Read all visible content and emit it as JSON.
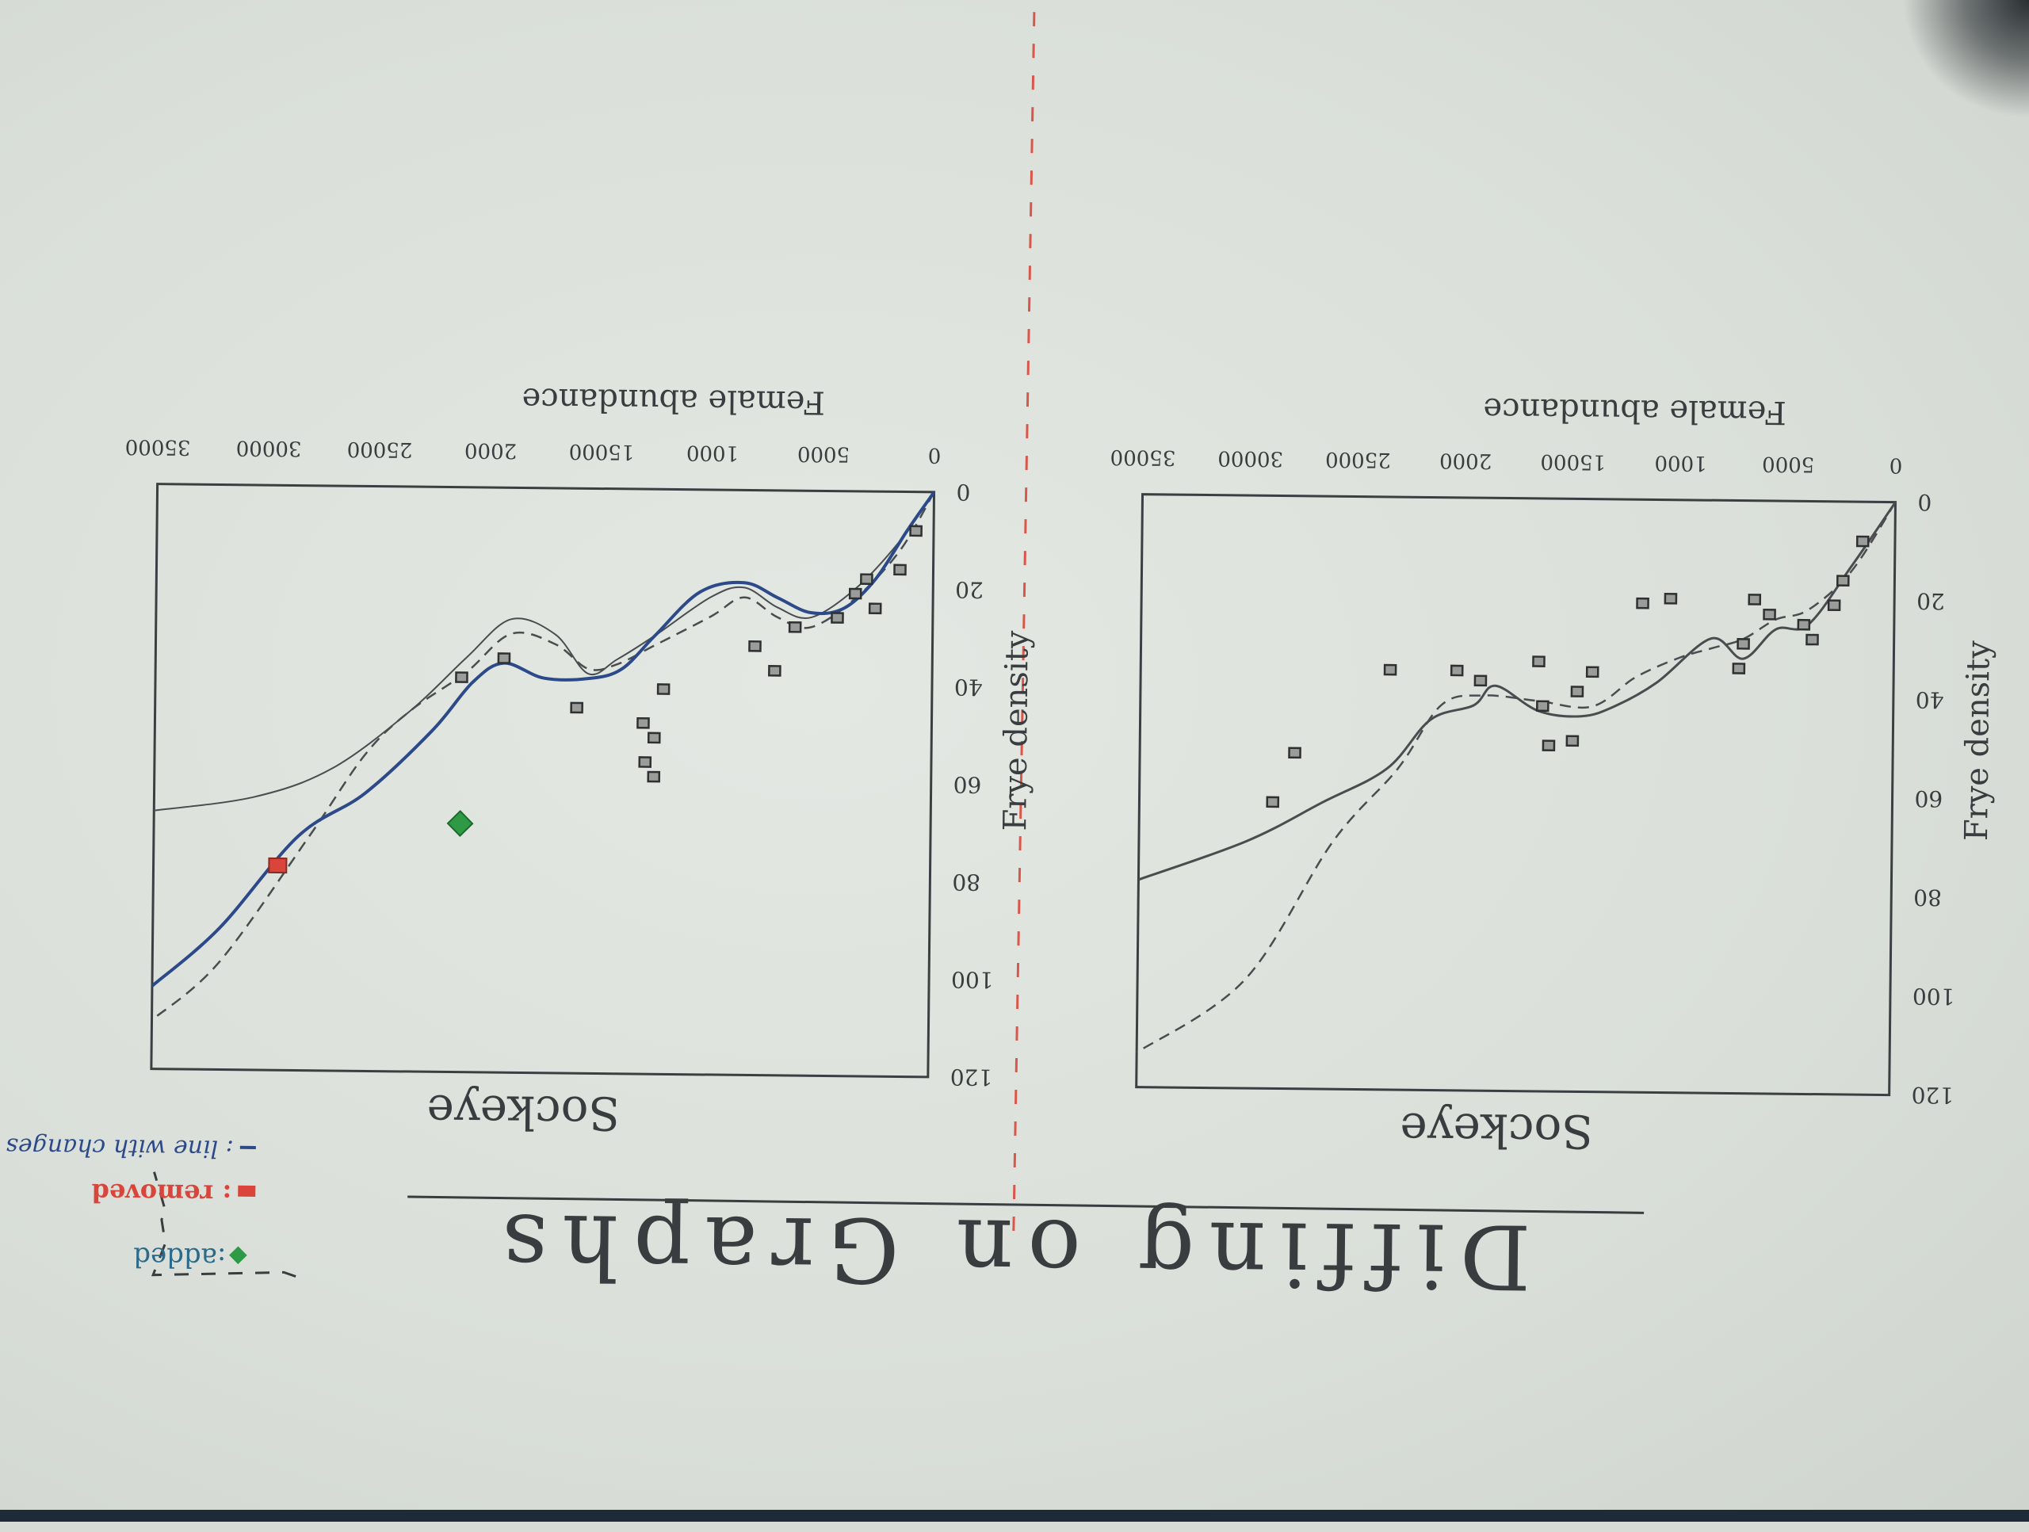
{
  "title": "Diffing on Graphs",
  "colors": {
    "ink": "#3a3d3f",
    "blue": "#2c4a8a",
    "red": "#d9453a",
    "green": "#2f9a45"
  },
  "legend": {
    "added": ":added",
    "removed": ": removed",
    "changed": ": line with changes made"
  },
  "charts": [
    {
      "name": "Sockeye",
      "title": "Sockeye",
      "xlabel": "Female abundance",
      "ylabel": "Frye density",
      "xticks": [
        "0",
        "5000",
        "1000",
        "15000",
        "2000",
        "25000",
        "30000",
        "35000"
      ],
      "yticks": [
        "0",
        "20",
        "40",
        "60",
        "80",
        "100",
        "120"
      ]
    },
    {
      "name": "Sockeye",
      "title": "Sockeye",
      "xlabel": "Female abundance",
      "ylabel": "Frye density",
      "xticks": [
        "0",
        "5000",
        "1000",
        "15000",
        "2000",
        "25000",
        "30000",
        "35000"
      ],
      "yticks": [
        "0",
        "20",
        "40",
        "60",
        "80",
        "100",
        "120"
      ]
    }
  ],
  "chart_data": [
    {
      "type": "scatter",
      "title": "Sockeye",
      "xlabel": "Female abundance",
      "ylabel": "Frye density",
      "xlim": [
        0,
        35000
      ],
      "ylim": [
        0,
        120
      ],
      "series": [
        {
          "name": "",
          "points": [
            [
              1500,
              8
            ],
            [
              2400,
              16
            ],
            [
              2800,
              21
            ],
            [
              3800,
              28
            ],
            [
              4200,
              25
            ],
            [
              5800,
              23
            ],
            [
              6500,
              20
            ],
            [
              7200,
              34
            ],
            [
              7000,
              29
            ],
            [
              10400,
              20
            ],
            [
              11700,
              21
            ],
            [
              14000,
              35
            ],
            [
              14700,
              39
            ],
            [
              14900,
              49
            ],
            [
              16500,
              33
            ],
            [
              16300,
              42
            ],
            [
              16000,
              50
            ],
            [
              19200,
              37
            ],
            [
              20300,
              35
            ],
            [
              23400,
              35
            ],
            [
              27800,
              52
            ],
            [
              28800,
              62
            ]
          ]
        }
      ]
    },
    {
      "type": "scatter",
      "title": "Sockeye",
      "xlabel": "Female abundance",
      "ylabel": "Frye density",
      "xlim": [
        0,
        35000
      ],
      "ylim": [
        0,
        120
      ],
      "series": [
        {
          "name": "",
          "points": [
            [
              800,
              8
            ],
            [
              1500,
              16
            ],
            [
              2600,
              24
            ],
            [
              3000,
              18
            ],
            [
              3500,
              21
            ],
            [
              4300,
              26
            ],
            [
              6200,
              28
            ],
            [
              7100,
              37
            ],
            [
              8000,
              32
            ],
            [
              12100,
              41
            ],
            [
              13000,
              48
            ],
            [
              12500,
              51
            ],
            [
              12900,
              56
            ],
            [
              12500,
              59
            ],
            [
              16000,
              45
            ],
            [
              19300,
              35
            ],
            [
              21200,
              39
            ]
          ]
        },
        {
          "name": "removed",
          "points": [
            [
              29400,
              78
            ]
          ]
        },
        {
          "name": "added",
          "points": [
            [
              21200,
              69
            ]
          ]
        }
      ]
    }
  ]
}
